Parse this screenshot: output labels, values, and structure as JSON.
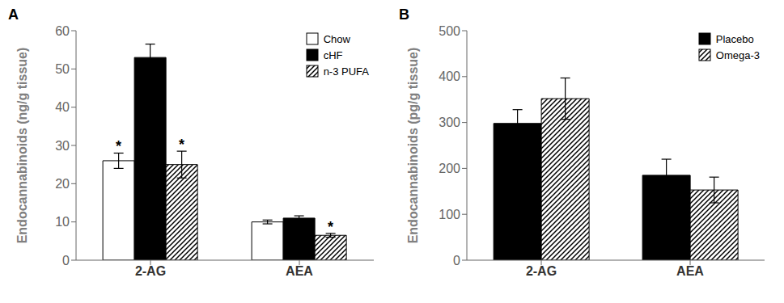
{
  "chart_data": [
    {
      "type": "bar",
      "title": "A",
      "ylabel": "Endocannabinoids (ng/g tissue)",
      "categories": [
        "2-AG",
        "AEA"
      ],
      "series": [
        {
          "name": "Chow",
          "color": "#ffffff",
          "values": [
            26.0,
            10.0
          ],
          "errors": [
            2.0,
            0.5
          ]
        },
        {
          "name": "cHF",
          "color": "#000000",
          "values": [
            53.0,
            11.0
          ],
          "errors": [
            3.5,
            0.6
          ]
        },
        {
          "name": "n-3 PUFA",
          "color": "#ffffff",
          "values": [
            25.0,
            6.5
          ],
          "errors": [
            3.5,
            0.5
          ]
        }
      ],
      "annotations": [
        {
          "text": "*",
          "category": "2-AG",
          "series": "Chow"
        },
        {
          "text": "*",
          "category": "2-AG",
          "series": "n-3 PUFA"
        },
        {
          "text": "*",
          "category": "AEA",
          "series": "n-3 PUFA"
        }
      ],
      "ylim": [
        0,
        60
      ],
      "yticks": [
        0,
        10,
        20,
        30,
        40,
        50,
        60
      ],
      "legend": "upper right",
      "grid": false
    },
    {
      "type": "bar",
      "title": "B",
      "ylabel": "Endocannabinoids (pg/g tissue)",
      "categories": [
        "2-AG",
        "AEA"
      ],
      "series": [
        {
          "name": "Placebo",
          "color": "#000000",
          "values": [
            298.0,
            185.0
          ],
          "errors": [
            30.0,
            35.0
          ]
        },
        {
          "name": "Omega-3",
          "color": "#ffffff",
          "values": [
            352.0,
            153.0
          ],
          "errors": [
            45.0,
            28.0
          ]
        }
      ],
      "annotations": [],
      "ylim": [
        0,
        500
      ],
      "yticks": [
        0,
        100,
        200,
        300,
        400,
        500
      ],
      "legend": "upper right",
      "grid": false
    }
  ]
}
